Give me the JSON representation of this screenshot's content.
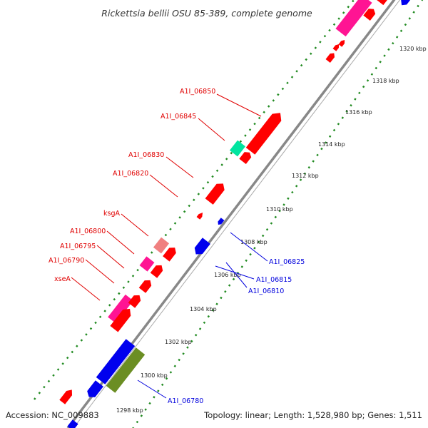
{
  "title": "Rickettsia bellii OSU 85-389, complete genome",
  "footer": {
    "accession": "Accession: NC_009883",
    "summary": "Topology: linear; Length: 1,528,980 bp; Genes: 1,511"
  },
  "colors": {
    "backbone": "#888888",
    "forward_gene": "#ff0000",
    "reverse_gene": "#0000ee",
    "rna": "#ff1493",
    "highlight_green": "#6b8e23",
    "highlight_teal": "#00e5a0",
    "ksgA": "#f08080",
    "tick_dot": "#228b22",
    "label_forward": "#e00000",
    "label_reverse": "#0000dd"
  },
  "scale_labels": [
    "1298 kbp",
    "1300 kbp",
    "1302 kbp",
    "1304 kbp",
    "1306 kbp",
    "1308 kbp",
    "1310 kbp",
    "1312 kbp",
    "1314 kbp",
    "1316 kbp",
    "1318 kbp",
    "1320 kbp"
  ],
  "forward_labels": [
    "A1I_06850",
    "A1I_06845",
    "A1I_06830",
    "A1I_06820",
    "ksgA",
    "A1I_06800",
    "A1I_06795",
    "A1I_06790",
    "xseA"
  ],
  "reverse_labels": [
    "A1I_06825",
    "A1I_06815",
    "A1I_06810",
    "A1I_06780"
  ]
}
